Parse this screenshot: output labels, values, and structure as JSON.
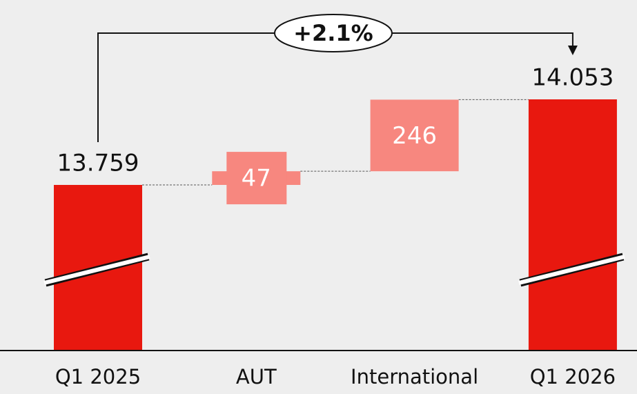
{
  "chart_data": {
    "type": "waterfall",
    "categories": [
      "Q1 2025",
      "AUT",
      "International",
      "Q1 2026"
    ],
    "values": [
      13759,
      47,
      246,
      14053
    ],
    "value_labels": [
      "13.759",
      "47",
      "246",
      "14.053"
    ],
    "kinds": [
      "total",
      "delta",
      "delta",
      "total"
    ],
    "colors": {
      "total": "#e8180f",
      "delta": "#f7877f"
    },
    "annotation": "+2.1%"
  }
}
